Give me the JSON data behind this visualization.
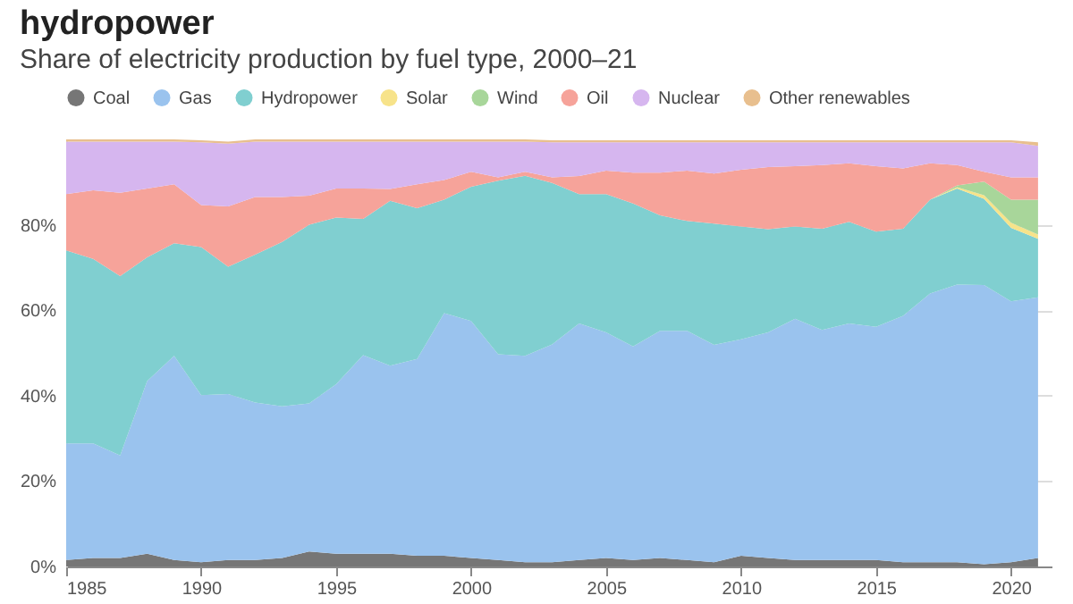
{
  "chart_data": {
    "type": "area",
    "stacked": true,
    "title": "hydropower",
    "subtitle": "Share of electricity production by fuel type, 2000–21",
    "x": [
      1985,
      1986,
      1987,
      1988,
      1989,
      1990,
      1991,
      1992,
      1993,
      1994,
      1995,
      1996,
      1997,
      1998,
      1999,
      2000,
      2001,
      2002,
      2003,
      2004,
      2005,
      2006,
      2007,
      2008,
      2009,
      2010,
      2011,
      2012,
      2013,
      2014,
      2015,
      2016,
      2017,
      2018,
      2019,
      2020,
      2021
    ],
    "series": [
      {
        "name": "Coal",
        "color": "#767676",
        "values": [
          1.5,
          2,
          2,
          3,
          1.5,
          1,
          1.5,
          1.5,
          2,
          3.5,
          3,
          3,
          3,
          2.5,
          2.5,
          2,
          1.5,
          1,
          1,
          1.5,
          2,
          1.5,
          2,
          1.5,
          1,
          2.5,
          2,
          1.5,
          1.5,
          1.5,
          1.5,
          1,
          1,
          1,
          0.5,
          1,
          2
        ]
      },
      {
        "name": "Gas",
        "color": "#9ac3ee",
        "values": [
          27.3,
          26.8,
          24,
          40.4,
          47.8,
          39.1,
          38.9,
          36.9,
          35.5,
          34.7,
          39.7,
          46.5,
          44,
          46.1,
          56.8,
          55.5,
          48.2,
          48.3,
          51,
          55.4,
          52.8,
          50,
          53.2,
          53.7,
          50.9,
          50.7,
          52.8,
          56.5,
          53.9,
          55.4,
          54.6,
          57.7,
          62.9,
          65,
          65.4,
          61.1,
          61
        ]
      },
      {
        "name": "Hydropower",
        "color": "#80cfd0",
        "values": [
          45.2,
          43.2,
          42,
          29,
          26.4,
          34.7,
          29.8,
          34.6,
          38.5,
          41.8,
          39,
          31.9,
          38.6,
          35.3,
          26.6,
          31.4,
          40.6,
          42.2,
          37.8,
          30.3,
          32.4,
          33.5,
          27,
          25.7,
          28.4,
          26.4,
          24.2,
          21.6,
          23.7,
          23.8,
          22.3,
          20.4,
          22,
          22.5,
          20.2,
          17.2,
          13.7
        ]
      },
      {
        "name": "Solar",
        "color": "#f7e38a",
        "values": [
          null,
          null,
          null,
          null,
          null,
          null,
          null,
          null,
          null,
          null,
          null,
          null,
          null,
          null,
          null,
          null,
          null,
          null,
          null,
          null,
          null,
          null,
          null,
          null,
          null,
          null,
          null,
          null,
          null,
          null,
          null,
          null,
          0,
          0.3,
          0.8,
          1.2,
          1
        ]
      },
      {
        "name": "Wind",
        "color": "#a8d69a",
        "values": [
          null,
          null,
          null,
          null,
          null,
          null,
          null,
          null,
          null,
          null,
          null,
          null,
          null,
          null,
          null,
          null,
          null,
          null,
          null,
          null,
          null,
          null,
          null,
          null,
          null,
          null,
          null,
          null,
          null,
          null,
          null,
          null,
          0,
          0.4,
          3.2,
          5.4,
          8.2
        ]
      },
      {
        "name": "Oil",
        "color": "#f6a39a",
        "values": [
          13.2,
          16.1,
          19.5,
          16.1,
          13.8,
          9.8,
          14.1,
          13.5,
          10.5,
          6.8,
          6.8,
          7.1,
          2.8,
          5.6,
          4.6,
          3.5,
          0.8,
          0.9,
          1.3,
          4.2,
          5.5,
          7.2,
          10,
          11.8,
          11.7,
          13.3,
          14.5,
          14.1,
          14.9,
          13.7,
          15.3,
          14.1,
          8.5,
          4.8,
          2.3,
          5.2,
          5.2
        ]
      },
      {
        "name": "Nuclear",
        "color": "#d6b6ef",
        "values": [
          12.3,
          11.4,
          12,
          11,
          10,
          14.7,
          14.7,
          13,
          13,
          12.7,
          11,
          11,
          11.1,
          10,
          9,
          7.1,
          8.4,
          7.1,
          8.2,
          7.9,
          6.6,
          7.1,
          7.1,
          6.6,
          7.3,
          6.4,
          5.8,
          5.6,
          5.3,
          4.9,
          5.6,
          6.1,
          4.9,
          5.3,
          6.9,
          8.2,
          7.4
        ]
      },
      {
        "name": "Other renewables",
        "color": "#e8bf8e",
        "values": [
          0.5,
          0.5,
          0.5,
          0.5,
          0.5,
          0.5,
          0.5,
          0.5,
          0.5,
          0.5,
          0.5,
          0.5,
          0.5,
          0.5,
          0.5,
          0.5,
          0.5,
          0.5,
          0.5,
          0.5,
          0.5,
          0.5,
          0.5,
          0.5,
          0.5,
          0.5,
          0.5,
          0.5,
          0.5,
          0.5,
          0.5,
          0.5,
          0.5,
          0.5,
          0.5,
          0.5,
          0.8
        ]
      }
    ],
    "xlim": [
      1985,
      2021.5
    ],
    "xticks": [
      1985,
      1990,
      1995,
      2000,
      2005,
      2010,
      2015,
      2020
    ],
    "ylim": [
      0,
      100
    ],
    "yticks": [
      {
        "value": 0,
        "label": "0%"
      },
      {
        "value": 20,
        "label": "20%"
      },
      {
        "value": 40,
        "label": "40%"
      },
      {
        "value": 60,
        "label": "60%"
      },
      {
        "value": 80,
        "label": "80%"
      }
    ],
    "grid": "y",
    "legend": "top",
    "marker": "none"
  }
}
